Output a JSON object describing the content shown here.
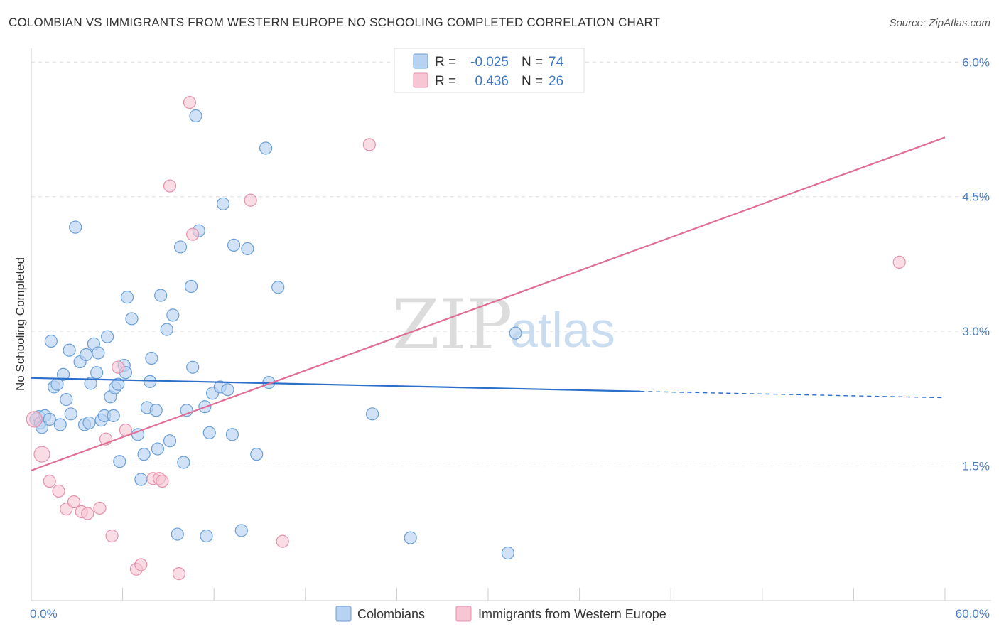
{
  "title": "COLOMBIAN VS IMMIGRANTS FROM WESTERN EUROPE NO SCHOOLING COMPLETED CORRELATION CHART",
  "source": "Source: ZipAtlas.com",
  "watermark": {
    "zip": "ZIP",
    "atlas": "atlas"
  },
  "colors": {
    "blue_fill": "#b8d2f2",
    "blue_stroke": "#6a9fd8",
    "blue_line": "#2b6fcb",
    "pink_fill": "#f7c5d4",
    "pink_stroke": "#e591ac",
    "pink_line": "#e06d95",
    "tick_text": "#4a7cc0",
    "grid": "#dddddd"
  },
  "legend": {
    "rows": [
      {
        "r_label": "R =",
        "r_value": "-0.025",
        "n_label": "N =",
        "n_value": "74",
        "series": "Colombians"
      },
      {
        "r_label": "R =",
        "r_value": "0.436",
        "n_label": "N =",
        "n_value": "26",
        "series": "Immigrants from Western Europe"
      }
    ]
  },
  "chart_data": {
    "type": "scatter",
    "title": "COLOMBIAN VS IMMIGRANTS FROM WESTERN EUROPE NO SCHOOLING COMPLETED CORRELATION CHART",
    "xlabel": "",
    "ylabel": "No Schooling Completed",
    "xlim": [
      0,
      60
    ],
    "ylim": [
      0,
      6.2
    ],
    "x_tick_labels": [
      "0.0%",
      "60.0%"
    ],
    "x_minor_ticks": [
      0,
      6,
      12,
      18,
      24,
      30,
      36,
      42,
      48,
      54,
      60
    ],
    "y_ticks": [
      1.5,
      3.0,
      4.5,
      6.0
    ],
    "y_tick_labels": [
      "1.5%",
      "3.0%",
      "4.5%",
      "6.0%"
    ],
    "legend_position": "top-center",
    "series": [
      {
        "name": "Colombians",
        "color": "#6a9fd8",
        "trend": {
          "x0": 0,
          "y0": 2.48,
          "x1": 40,
          "y1": 2.33,
          "dash_to_x": 60,
          "dash_to_y": 2.26
        },
        "points": [
          [
            0.3,
            2.02
          ],
          [
            0.5,
            2.05
          ],
          [
            0.6,
            1.98
          ],
          [
            0.7,
            1.93
          ],
          [
            0.9,
            2.06
          ],
          [
            1.2,
            2.02
          ],
          [
            1.3,
            2.89
          ],
          [
            1.5,
            2.38
          ],
          [
            1.7,
            2.41
          ],
          [
            1.9,
            1.96
          ],
          [
            2.1,
            2.52
          ],
          [
            2.3,
            2.24
          ],
          [
            2.5,
            2.79
          ],
          [
            2.6,
            2.08
          ],
          [
            2.9,
            4.16
          ],
          [
            3.2,
            2.66
          ],
          [
            3.5,
            1.96
          ],
          [
            3.6,
            2.74
          ],
          [
            3.8,
            1.98
          ],
          [
            3.9,
            2.42
          ],
          [
            4.1,
            2.86
          ],
          [
            4.3,
            2.54
          ],
          [
            4.4,
            2.76
          ],
          [
            4.6,
            2.01
          ],
          [
            4.8,
            2.06
          ],
          [
            5.0,
            2.94
          ],
          [
            5.2,
            2.27
          ],
          [
            5.4,
            2.06
          ],
          [
            5.5,
            2.37
          ],
          [
            5.7,
            2.41
          ],
          [
            5.8,
            1.55
          ],
          [
            6.1,
            2.62
          ],
          [
            6.2,
            2.54
          ],
          [
            6.3,
            3.38
          ],
          [
            6.6,
            3.14
          ],
          [
            7.0,
            1.85
          ],
          [
            7.2,
            1.35
          ],
          [
            7.4,
            1.63
          ],
          [
            7.6,
            2.15
          ],
          [
            7.8,
            2.44
          ],
          [
            7.9,
            2.7
          ],
          [
            8.2,
            2.12
          ],
          [
            8.3,
            1.69
          ],
          [
            8.5,
            3.4
          ],
          [
            8.9,
            3.02
          ],
          [
            9.1,
            1.78
          ],
          [
            9.3,
            3.18
          ],
          [
            9.6,
            0.74
          ],
          [
            9.8,
            3.94
          ],
          [
            10.0,
            1.54
          ],
          [
            10.2,
            2.12
          ],
          [
            10.5,
            3.5
          ],
          [
            10.6,
            2.6
          ],
          [
            10.8,
            5.4
          ],
          [
            11.0,
            4.12
          ],
          [
            11.4,
            2.16
          ],
          [
            11.5,
            0.72
          ],
          [
            11.7,
            1.87
          ],
          [
            11.9,
            2.31
          ],
          [
            12.4,
            2.38
          ],
          [
            12.6,
            4.42
          ],
          [
            12.9,
            2.35
          ],
          [
            13.2,
            1.85
          ],
          [
            13.3,
            3.96
          ],
          [
            13.8,
            0.78
          ],
          [
            14.2,
            3.92
          ],
          [
            14.8,
            1.63
          ],
          [
            15.4,
            5.04
          ],
          [
            15.6,
            2.43
          ],
          [
            16.2,
            3.49
          ],
          [
            22.4,
            2.08
          ],
          [
            24.9,
            0.7
          ],
          [
            31.3,
            0.53
          ],
          [
            31.8,
            2.98
          ]
        ]
      },
      {
        "name": "Immigrants from Western Europe",
        "color": "#e591ac",
        "trend": {
          "x0": 0,
          "y0": 1.45,
          "x1": 60,
          "y1": 5.16
        },
        "points": [
          [
            0.2,
            2.02
          ],
          [
            0.7,
            1.63
          ],
          [
            1.2,
            1.33
          ],
          [
            1.8,
            1.22
          ],
          [
            2.3,
            1.02
          ],
          [
            2.8,
            1.1
          ],
          [
            3.3,
            0.99
          ],
          [
            3.7,
            0.97
          ],
          [
            4.5,
            1.03
          ],
          [
            4.9,
            1.8
          ],
          [
            5.3,
            0.72
          ],
          [
            5.7,
            2.6
          ],
          [
            6.2,
            1.9
          ],
          [
            6.9,
            0.35
          ],
          [
            7.2,
            0.4
          ],
          [
            8.0,
            1.36
          ],
          [
            8.4,
            1.36
          ],
          [
            8.6,
            1.33
          ],
          [
            9.1,
            4.62
          ],
          [
            9.7,
            0.3
          ],
          [
            10.4,
            5.55
          ],
          [
            10.6,
            4.08
          ],
          [
            14.4,
            4.46
          ],
          [
            16.5,
            0.66
          ],
          [
            22.2,
            5.08
          ],
          [
            57.0,
            3.77
          ]
        ]
      }
    ]
  }
}
